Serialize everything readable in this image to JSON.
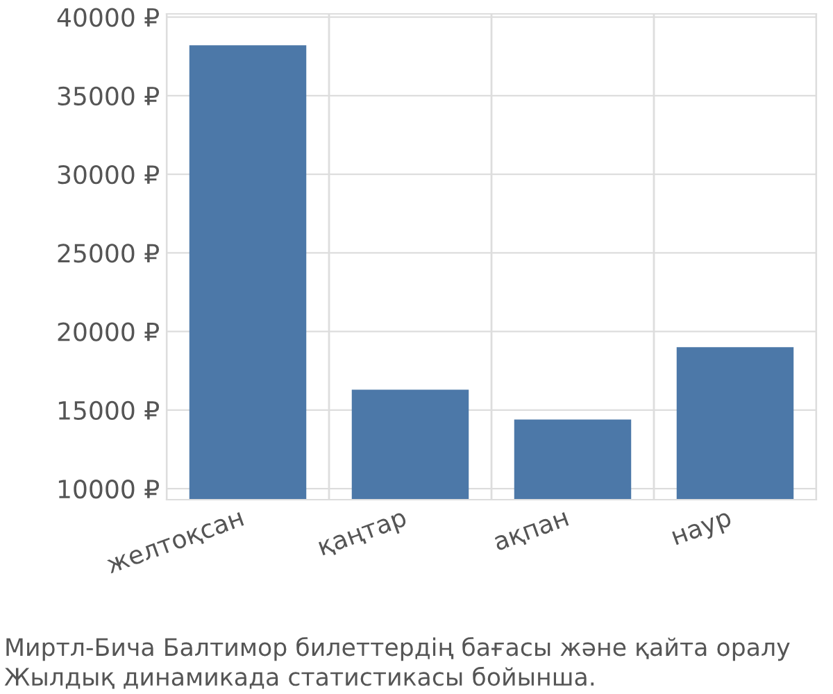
{
  "chart_data": {
    "type": "bar",
    "categories": [
      "желтоқсан",
      "қаңтар",
      "ақпан",
      "наур"
    ],
    "values": [
      38200,
      16300,
      14400,
      19000
    ],
    "color": "#4c78a8",
    "ylim": [
      9300,
      40200
    ],
    "yticks": [
      {
        "value": 10000,
        "label": "10000 ₽"
      },
      {
        "value": 15000,
        "label": "15000 ₽"
      },
      {
        "value": 20000,
        "label": "20000 ₽"
      },
      {
        "value": 25000,
        "label": "25000 ₽"
      },
      {
        "value": 30000,
        "label": "30000 ₽"
      },
      {
        "value": 35000,
        "label": "35000 ₽"
      },
      {
        "value": 40000,
        "label": "40000 ₽"
      }
    ],
    "grid": "y",
    "annotations": [
      "Миртл-Бича Балтимор билеттердің бағасы және қайта оралу\nЖылдық динамикада статистикасы бойынша."
    ]
  }
}
